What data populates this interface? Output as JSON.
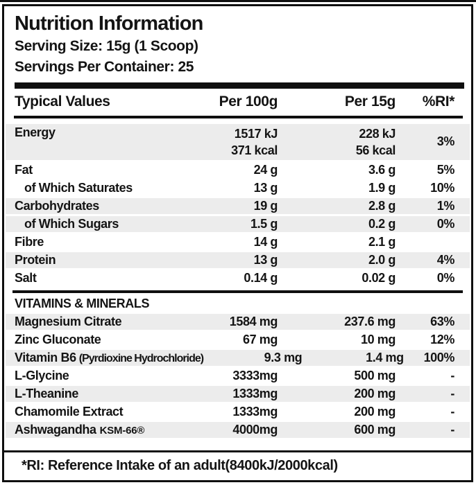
{
  "colors": {
    "stripe": "#ececec",
    "ink": "#141414",
    "frame": "#0f0f0f"
  },
  "header": {
    "title": "Nutrition Information",
    "serving_size": "Serving Size: 15g (1 Scoop)",
    "servings": "Servings Per Container: 25"
  },
  "table": {
    "columns": {
      "label": "Typical Values",
      "per100": "Per 100g",
      "per15": "Per 15g",
      "ri": "%RI*"
    },
    "energy": {
      "name": "Energy",
      "per100_kj": "1517 kJ",
      "per100_kcal": "371 kcal",
      "per15_kj": "228 kJ",
      "per15_kcal": "56 kcal",
      "ri": "3%"
    },
    "rows": [
      {
        "name": "Fat",
        "per100": "24 g",
        "per15": "3.6 g",
        "ri": "5%"
      },
      {
        "name": "of Which Saturates",
        "per100": "13 g",
        "per15": "1.9 g",
        "ri": "10%"
      },
      {
        "name": "Carbohydrates",
        "per100": "19 g",
        "per15": "2.8 g",
        "ri": "1%"
      },
      {
        "name": "of Which Sugars",
        "per100": "1.5 g",
        "per15": "0.2 g",
        "ri": "0%"
      },
      {
        "name": "Fibre",
        "per100": "14 g",
        "per15": "2.1 g",
        "ri": ""
      },
      {
        "name": "Protein",
        "per100": "13 g",
        "per15": "2.0 g",
        "ri": "4%"
      },
      {
        "name": "Salt",
        "per100": "0.14 g",
        "per15": "0.02 g",
        "ri": "0%"
      }
    ]
  },
  "vitamins": {
    "title": "VITAMINS & MINERALS",
    "rows": [
      {
        "name": "Magnesium Citrate",
        "name_suffix": "",
        "per100": "1584 mg",
        "per15": "237.6 mg",
        "ri": "63%"
      },
      {
        "name": "Zinc Gluconate",
        "name_suffix": "",
        "per100": "67 mg",
        "per15": "10 mg",
        "ri": "12%"
      },
      {
        "name": "Vitamin B6",
        "name_suffix": "(Pyrdioxine Hydrochloride)",
        "per100": "9.3 mg",
        "per15": "1.4 mg",
        "ri": "100%"
      },
      {
        "name": "L-Glycine",
        "name_suffix": "",
        "per100": "3333mg",
        "per15": "500 mg",
        "ri": "-"
      },
      {
        "name": "L-Theanine",
        "name_suffix": "",
        "per100": "1333mg",
        "per15": "200 mg",
        "ri": "-"
      },
      {
        "name": "Chamomile Extract",
        "name_suffix": "",
        "per100": "1333mg",
        "per15": "200 mg",
        "ri": "-"
      },
      {
        "name": "Ashwagandha",
        "name_suffix": "KSM-66®",
        "per100": "4000mg",
        "per15": "600 mg",
        "ri": "-"
      }
    ]
  },
  "footer": {
    "note": "*RI: Reference Intake of an adult(8400kJ/2000kcal)"
  }
}
